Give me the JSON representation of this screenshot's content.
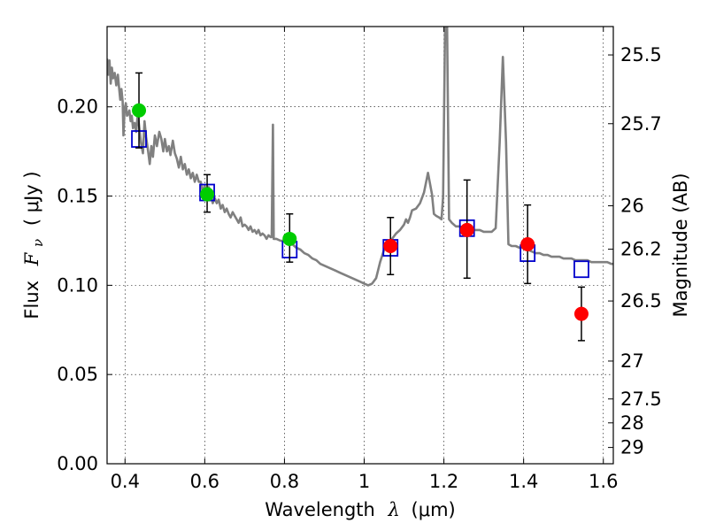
{
  "chart_data": {
    "type": "scatter",
    "title": "",
    "xlabel": {
      "prefix": "Wavelength",
      "math": "λ",
      "suffix": "(μm)"
    },
    "ylabel_left": {
      "prefix": "Flux",
      "math": "F",
      "math_sub": "ν",
      "unit": "( μJy )"
    },
    "ylabel_right": "Magnitude (AB)",
    "xlim": [
      0.355,
      1.625
    ],
    "ylim": [
      0.0,
      0.245
    ],
    "grid": true,
    "grid_style": "dotted",
    "x_ticks": [
      {
        "value": 0.4,
        "label": "0.4"
      },
      {
        "value": 0.6,
        "label": "0.6"
      },
      {
        "value": 0.8,
        "label": "0.8"
      },
      {
        "value": 1.0,
        "label": "1"
      },
      {
        "value": 1.2,
        "label": "1.2"
      },
      {
        "value": 1.4,
        "label": "1.4"
      },
      {
        "value": 1.6,
        "label": "1.6"
      }
    ],
    "y_ticks": [
      {
        "value": 0.0,
        "label": "0.00"
      },
      {
        "value": 0.05,
        "label": "0.05"
      },
      {
        "value": 0.1,
        "label": "0.10"
      },
      {
        "value": 0.15,
        "label": "0.15"
      },
      {
        "value": 0.2,
        "label": "0.20"
      }
    ],
    "mag_ticks": [
      {
        "mag": 25.5,
        "label": "25.5"
      },
      {
        "mag": 25.7,
        "label": "25.7"
      },
      {
        "mag": 26,
        "label": "26"
      },
      {
        "mag": 26.2,
        "label": "26.2"
      },
      {
        "mag": 26.5,
        "label": "26.5"
      },
      {
        "mag": 27,
        "label": "27"
      },
      {
        "mag": 27.5,
        "label": "27.5"
      },
      {
        "mag": 28,
        "label": "28"
      },
      {
        "mag": 29,
        "label": "29"
      }
    ],
    "series": [
      {
        "kind": "line",
        "color": "#808080",
        "points": [
          [
            0.355,
            0.227
          ],
          [
            0.358,
            0.218
          ],
          [
            0.361,
            0.226
          ],
          [
            0.364,
            0.213
          ],
          [
            0.367,
            0.222
          ],
          [
            0.37,
            0.216
          ],
          [
            0.374,
            0.219
          ],
          [
            0.378,
            0.212
          ],
          [
            0.382,
            0.218
          ],
          [
            0.385,
            0.211
          ],
          [
            0.388,
            0.204
          ],
          [
            0.391,
            0.21
          ],
          [
            0.394,
            0.203
          ],
          [
            0.396,
            0.184
          ],
          [
            0.399,
            0.199
          ],
          [
            0.402,
            0.202
          ],
          [
            0.405,
            0.195
          ],
          [
            0.408,
            0.196
          ],
          [
            0.411,
            0.198
          ],
          [
            0.414,
            0.192
          ],
          [
            0.417,
            0.195
          ],
          [
            0.42,
            0.188
          ],
          [
            0.424,
            0.191
          ],
          [
            0.428,
            0.186
          ],
          [
            0.432,
            0.196
          ],
          [
            0.436,
            0.188
          ],
          [
            0.44,
            0.18
          ],
          [
            0.445,
            0.174
          ],
          [
            0.449,
            0.192
          ],
          [
            0.453,
            0.183
          ],
          [
            0.458,
            0.175
          ],
          [
            0.462,
            0.168
          ],
          [
            0.466,
            0.178
          ],
          [
            0.47,
            0.172
          ],
          [
            0.475,
            0.184
          ],
          [
            0.48,
            0.178
          ],
          [
            0.486,
            0.186
          ],
          [
            0.491,
            0.182
          ],
          [
            0.496,
            0.175
          ],
          [
            0.5,
            0.182
          ],
          [
            0.505,
            0.175
          ],
          [
            0.51,
            0.178
          ],
          [
            0.514,
            0.173
          ],
          [
            0.52,
            0.181
          ],
          [
            0.525,
            0.174
          ],
          [
            0.53,
            0.171
          ],
          [
            0.535,
            0.166
          ],
          [
            0.54,
            0.172
          ],
          [
            0.545,
            0.165
          ],
          [
            0.55,
            0.168
          ],
          [
            0.555,
            0.162
          ],
          [
            0.56,
            0.165
          ],
          [
            0.565,
            0.16
          ],
          [
            0.57,
            0.163
          ],
          [
            0.575,
            0.158
          ],
          [
            0.58,
            0.162
          ],
          [
            0.585,
            0.158
          ],
          [
            0.59,
            0.158
          ],
          [
            0.595,
            0.152
          ],
          [
            0.6,
            0.156
          ],
          [
            0.605,
            0.15
          ],
          [
            0.61,
            0.155
          ],
          [
            0.615,
            0.152
          ],
          [
            0.62,
            0.146
          ],
          [
            0.625,
            0.149
          ],
          [
            0.63,
            0.146
          ],
          [
            0.635,
            0.148
          ],
          [
            0.64,
            0.143
          ],
          [
            0.645,
            0.145
          ],
          [
            0.65,
            0.141
          ],
          [
            0.655,
            0.143
          ],
          [
            0.66,
            0.14
          ],
          [
            0.665,
            0.138
          ],
          [
            0.67,
            0.141
          ],
          [
            0.675,
            0.139
          ],
          [
            0.68,
            0.137
          ],
          [
            0.685,
            0.135
          ],
          [
            0.69,
            0.138
          ],
          [
            0.695,
            0.133
          ],
          [
            0.7,
            0.134
          ],
          [
            0.705,
            0.133
          ],
          [
            0.71,
            0.131
          ],
          [
            0.715,
            0.133
          ],
          [
            0.72,
            0.13
          ],
          [
            0.725,
            0.131
          ],
          [
            0.73,
            0.129
          ],
          [
            0.735,
            0.131
          ],
          [
            0.74,
            0.128
          ],
          [
            0.745,
            0.129
          ],
          [
            0.75,
            0.128
          ],
          [
            0.755,
            0.126
          ],
          [
            0.76,
            0.128
          ],
          [
            0.765,
            0.127
          ],
          [
            0.768,
            0.127
          ],
          [
            0.771,
            0.19
          ],
          [
            0.773,
            0.126
          ],
          [
            0.78,
            0.126
          ],
          [
            0.79,
            0.125
          ],
          [
            0.8,
            0.125
          ],
          [
            0.81,
            0.124
          ],
          [
            0.82,
            0.123
          ],
          [
            0.83,
            0.121
          ],
          [
            0.84,
            0.12
          ],
          [
            0.85,
            0.118
          ],
          [
            0.86,
            0.117
          ],
          [
            0.87,
            0.115
          ],
          [
            0.88,
            0.114
          ],
          [
            0.89,
            0.112
          ],
          [
            0.9,
            0.111
          ],
          [
            0.91,
            0.11
          ],
          [
            0.92,
            0.109
          ],
          [
            0.93,
            0.108
          ],
          [
            0.94,
            0.107
          ],
          [
            0.95,
            0.106
          ],
          [
            0.96,
            0.105
          ],
          [
            0.97,
            0.104
          ],
          [
            0.98,
            0.103
          ],
          [
            0.99,
            0.102
          ],
          [
            1.0,
            0.101
          ],
          [
            1.01,
            0.1
          ],
          [
            1.02,
            0.101
          ],
          [
            1.03,
            0.104
          ],
          [
            1.04,
            0.113
          ],
          [
            1.05,
            0.12
          ],
          [
            1.06,
            0.124
          ],
          [
            1.07,
            0.126
          ],
          [
            1.08,
            0.129
          ],
          [
            1.09,
            0.131
          ],
          [
            1.1,
            0.134
          ],
          [
            1.105,
            0.137
          ],
          [
            1.11,
            0.135
          ],
          [
            1.115,
            0.138
          ],
          [
            1.12,
            0.142
          ],
          [
            1.13,
            0.143
          ],
          [
            1.14,
            0.146
          ],
          [
            1.15,
            0.152
          ],
          [
            1.16,
            0.163
          ],
          [
            1.17,
            0.151
          ],
          [
            1.175,
            0.14
          ],
          [
            1.18,
            0.139
          ],
          [
            1.188,
            0.138
          ],
          [
            1.194,
            0.137
          ],
          [
            1.198,
            0.15
          ],
          [
            1.203,
            0.245
          ],
          [
            1.208,
            0.245
          ],
          [
            1.213,
            0.137
          ],
          [
            1.22,
            0.135
          ],
          [
            1.23,
            0.133
          ],
          [
            1.24,
            0.133
          ],
          [
            1.25,
            0.132
          ],
          [
            1.26,
            0.132
          ],
          [
            1.27,
            0.131
          ],
          [
            1.28,
            0.131
          ],
          [
            1.29,
            0.131
          ],
          [
            1.3,
            0.13
          ],
          [
            1.31,
            0.13
          ],
          [
            1.32,
            0.13
          ],
          [
            1.33,
            0.132
          ],
          [
            1.34,
            0.18
          ],
          [
            1.348,
            0.228
          ],
          [
            1.356,
            0.18
          ],
          [
            1.362,
            0.123
          ],
          [
            1.37,
            0.122
          ],
          [
            1.38,
            0.122
          ],
          [
            1.39,
            0.121
          ],
          [
            1.4,
            0.121
          ],
          [
            1.41,
            0.12
          ],
          [
            1.42,
            0.119
          ],
          [
            1.43,
            0.118
          ],
          [
            1.44,
            0.118
          ],
          [
            1.45,
            0.117
          ],
          [
            1.46,
            0.117
          ],
          [
            1.47,
            0.116
          ],
          [
            1.48,
            0.116
          ],
          [
            1.49,
            0.116
          ],
          [
            1.5,
            0.115
          ],
          [
            1.51,
            0.115
          ],
          [
            1.52,
            0.115
          ],
          [
            1.53,
            0.114
          ],
          [
            1.54,
            0.114
          ],
          [
            1.55,
            0.114
          ],
          [
            1.56,
            0.114
          ],
          [
            1.57,
            0.113
          ],
          [
            1.58,
            0.113
          ],
          [
            1.59,
            0.113
          ],
          [
            1.6,
            0.113
          ],
          [
            1.61,
            0.113
          ],
          [
            1.62,
            0.112
          ],
          [
            1.625,
            0.112
          ]
        ]
      },
      {
        "kind": "open_square",
        "color": "#0000cc",
        "points": [
          {
            "x": 0.435,
            "y": 0.182
          },
          {
            "x": 0.606,
            "y": 0.152
          },
          {
            "x": 0.813,
            "y": 0.12
          },
          {
            "x": 1.066,
            "y": 0.121
          },
          {
            "x": 1.258,
            "y": 0.132
          },
          {
            "x": 1.41,
            "y": 0.118
          },
          {
            "x": 1.545,
            "y": 0.109
          }
        ]
      },
      {
        "kind": "filled_circle",
        "color": "#00cc00",
        "points": [
          {
            "x": 0.435,
            "y": 0.198,
            "err_low": 0.177,
            "err_high": 0.219
          },
          {
            "x": 0.606,
            "y": 0.151,
            "err_low": 0.141,
            "err_high": 0.162
          },
          {
            "x": 0.813,
            "y": 0.126,
            "err_low": 0.113,
            "err_high": 0.14
          }
        ]
      },
      {
        "kind": "filled_circle",
        "color": "#ff0000",
        "points": [
          {
            "x": 1.066,
            "y": 0.122,
            "err_low": 0.106,
            "err_high": 0.138
          },
          {
            "x": 1.258,
            "y": 0.131,
            "err_low": 0.104,
            "err_high": 0.159
          },
          {
            "x": 1.41,
            "y": 0.123,
            "err_low": 0.101,
            "err_high": 0.145
          },
          {
            "x": 1.545,
            "y": 0.084,
            "err_low": 0.069,
            "err_high": 0.099
          }
        ]
      }
    ]
  }
}
